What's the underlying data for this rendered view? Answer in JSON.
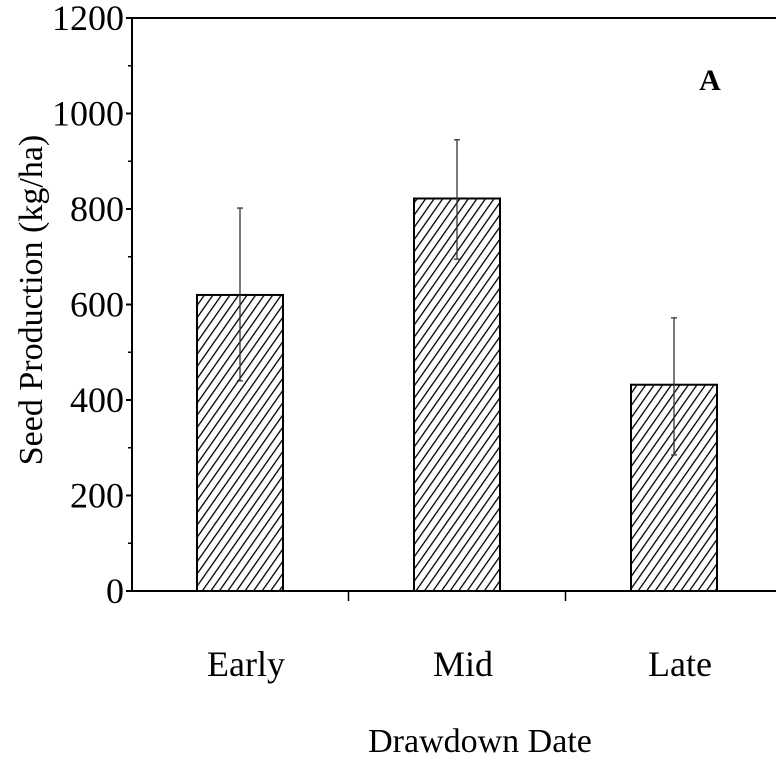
{
  "chart_data": {
    "type": "bar",
    "categories": [
      "Early",
      "Mid",
      "Late"
    ],
    "values": [
      620,
      822,
      432
    ],
    "error_upper": [
      802,
      945,
      572
    ],
    "error_lower": [
      440,
      695,
      285
    ],
    "title": "",
    "panel_label": "A",
    "xlabel": "Drawdown Date",
    "ylabel": "Seed Production (kg/ha)",
    "ylim": [
      0,
      1200
    ],
    "yticks": [
      "0",
      "200",
      "400",
      "600",
      "800",
      "1000",
      "1200"
    ],
    "ytick_values": [
      0,
      200,
      400,
      600,
      800,
      1000,
      1200
    ],
    "grid": false,
    "bar_pattern": "diagonal-hatch",
    "colors": {
      "bar_fill": "#ffffff",
      "hatch": "#000000",
      "axis": "#000000"
    }
  }
}
